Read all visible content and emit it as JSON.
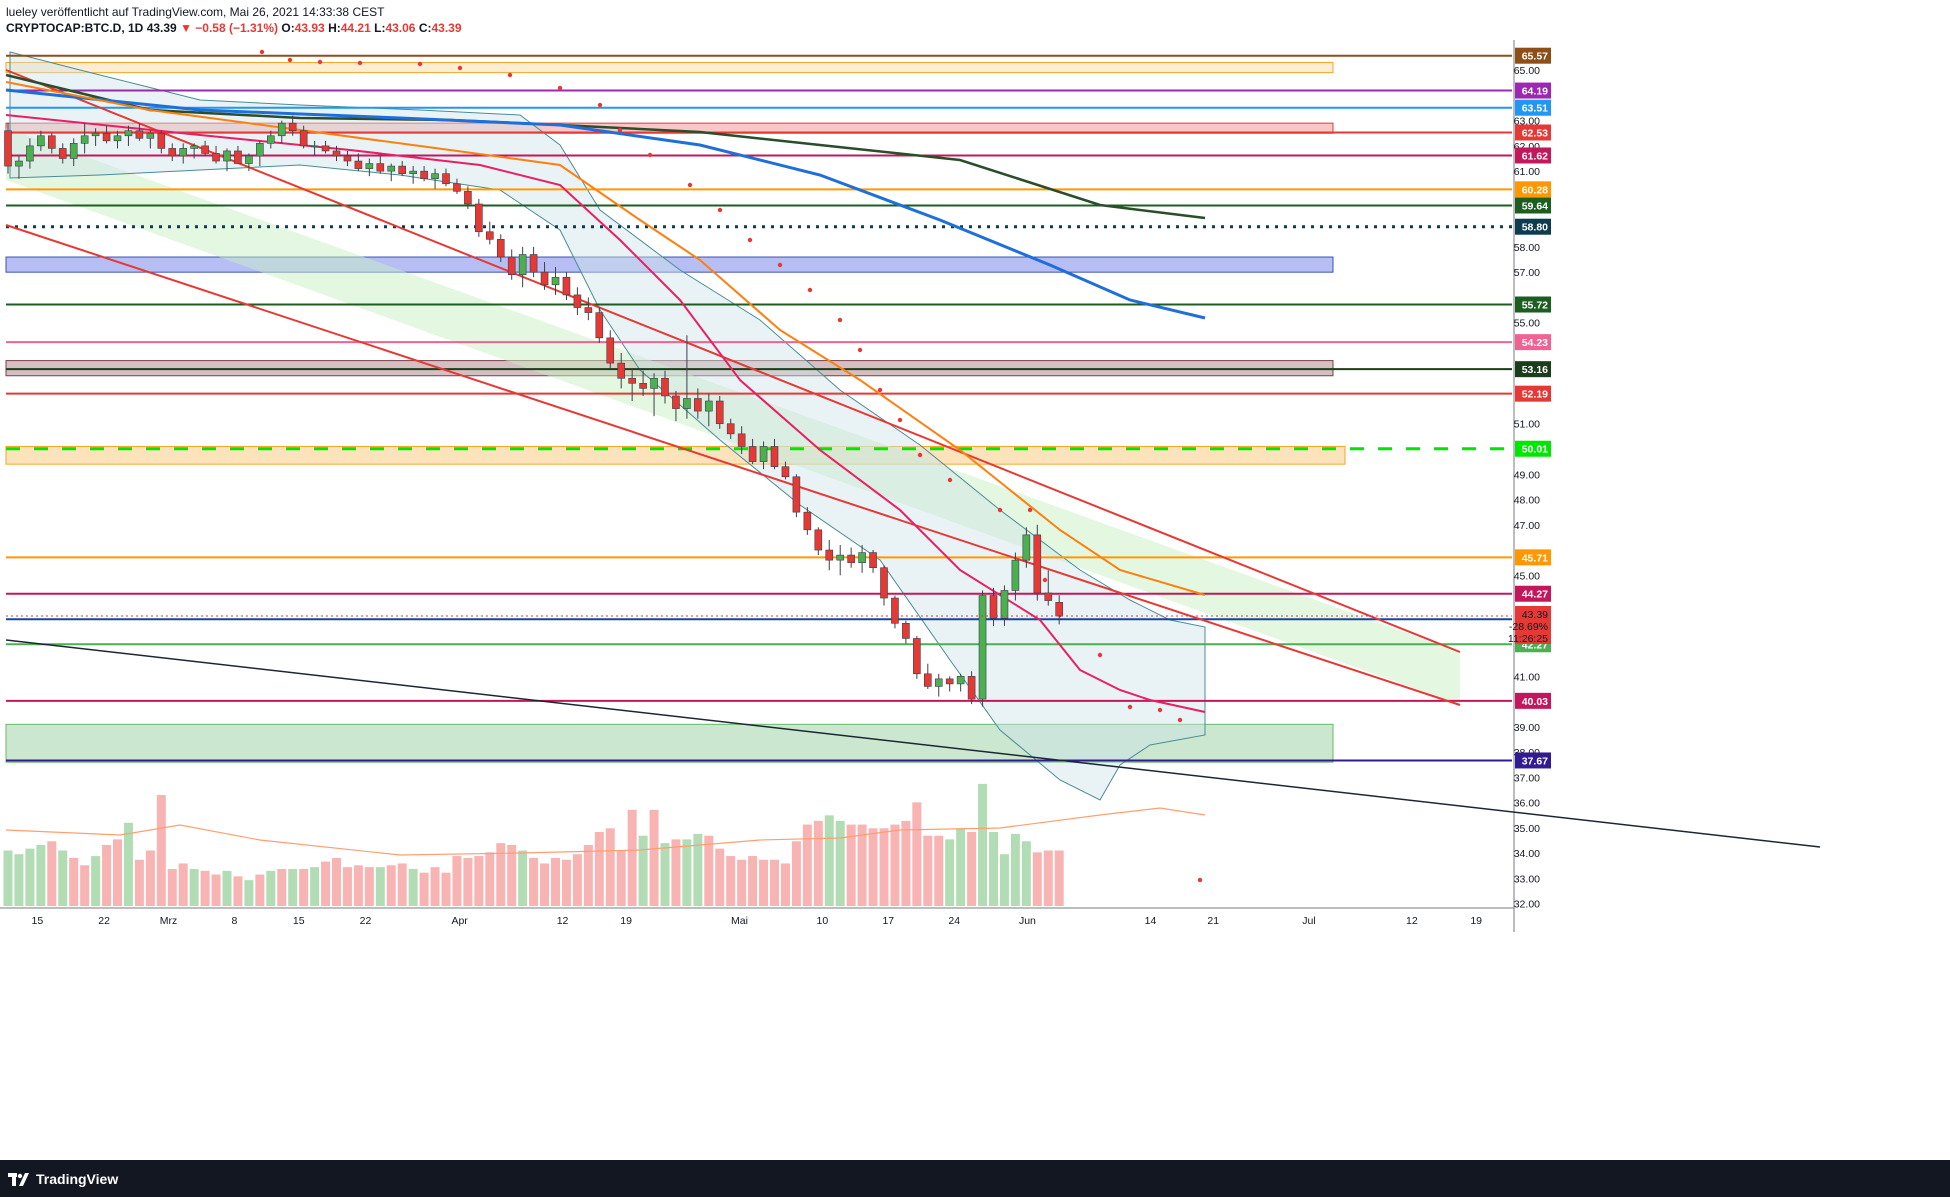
{
  "header": {
    "publisher_line": "lueley veröffentlicht auf TradingView.com, Mai 26, 2021 14:33:38 CEST",
    "symbol": "CRYPTOCAP:BTC.D, 1D",
    "last": "43.39",
    "change": "−0.58 (−1.31%)",
    "open_label": "O:",
    "open": "43.93",
    "high_label": "H:",
    "high": "44.21",
    "low_label": "L:",
    "low": "43.06",
    "close_label": "C:",
    "close": "43.39"
  },
  "footer": {
    "brand": "TradingView"
  },
  "colors": {
    "up": "#26a69a",
    "down": "#ef5350",
    "up_candle": "#4caf50",
    "down_candle": "#e53935",
    "accent_orange": "#ff9800",
    "green_dash": "#00e600"
  },
  "chart_data": {
    "type": "candlestick",
    "y_axis_ticks": [
      32,
      33,
      34,
      35,
      36,
      37,
      38,
      39,
      41,
      45,
      47,
      48,
      49,
      51,
      55,
      57,
      58,
      61,
      62,
      63,
      65
    ],
    "x_axis_ticks": [
      "15",
      "22",
      "Mrz",
      "8",
      "15",
      "22",
      "Apr",
      "12",
      "19",
      "Mai",
      "10",
      "17",
      "24",
      "Jun",
      "14",
      "21",
      "Jul",
      "12",
      "19"
    ],
    "price_tags": [
      {
        "label": "65.57",
        "value": 65.57,
        "color": "#8d4e18"
      },
      {
        "label": "64.19",
        "value": 64.19,
        "color": "#9c27b0"
      },
      {
        "label": "63.51",
        "value": 63.51,
        "color": "#2196f3"
      },
      {
        "label": "62.53",
        "value": 62.53,
        "color": "#e53935"
      },
      {
        "label": "61.62",
        "value": 61.62,
        "color": "#c2185b"
      },
      {
        "label": "60.28",
        "value": 60.28,
        "color": "#ff9800"
      },
      {
        "label": "59.64",
        "value": 59.64,
        "color": "#1b5e20"
      },
      {
        "label": "58.80",
        "value": 58.8,
        "color": "#0d3b4f"
      },
      {
        "label": "55.72",
        "value": 55.72,
        "color": "#1b5e20"
      },
      {
        "label": "54.23",
        "value": 54.23,
        "color": "#f06292"
      },
      {
        "label": "53.16",
        "value": 53.16,
        "color": "#1b3d1b"
      },
      {
        "label": "52.19",
        "value": 52.19,
        "color": "#e53935"
      },
      {
        "label": "50.01",
        "value": 50.01,
        "color": "#00e600"
      },
      {
        "label": "45.71",
        "value": 45.71,
        "color": "#ff9800"
      },
      {
        "label": "44.27",
        "value": 44.27,
        "color": "#c2185b"
      },
      {
        "label": "43.26",
        "value": 43.26,
        "color": "#0d47a1"
      },
      {
        "label": "42.27",
        "value": 42.27,
        "color": "#4caf50"
      },
      {
        "label": "40.03",
        "value": 40.03,
        "color": "#c2185b"
      },
      {
        "label": "37.67",
        "value": 37.67,
        "color": "#311b92"
      }
    ],
    "current_tag": {
      "price": "43.39",
      "pct": "-28.69%",
      "countdown": "11:26:25",
      "value": 43.39
    },
    "horizontal_lines": [
      {
        "value": 65.57,
        "color": "#8d4e18",
        "style": "solid"
      },
      {
        "value": 64.19,
        "color": "#9c27b0",
        "style": "solid"
      },
      {
        "value": 63.51,
        "color": "#2196f3",
        "style": "solid"
      },
      {
        "value": 62.53,
        "color": "#e53935",
        "style": "solid"
      },
      {
        "value": 61.62,
        "color": "#c2185b",
        "style": "solid"
      },
      {
        "value": 60.28,
        "color": "#ff9800",
        "style": "solid"
      },
      {
        "value": 59.64,
        "color": "#1b5e20",
        "style": "solid"
      },
      {
        "value": 58.8,
        "color": "#0d3b4f",
        "style": "dotted"
      },
      {
        "value": 55.72,
        "color": "#1b5e20",
        "style": "solid"
      },
      {
        "value": 54.23,
        "color": "#f06292",
        "style": "solid"
      },
      {
        "value": 53.16,
        "color": "#1b3d1b",
        "style": "solid"
      },
      {
        "value": 52.19,
        "color": "#e53935",
        "style": "solid"
      },
      {
        "value": 50.01,
        "color": "#00e600",
        "style": "dashed"
      },
      {
        "value": 45.71,
        "color": "#ff9800",
        "style": "solid"
      },
      {
        "value": 44.27,
        "color": "#c2185b",
        "style": "solid"
      },
      {
        "value": 43.26,
        "color": "#0d47a1",
        "style": "solid"
      },
      {
        "value": 42.27,
        "color": "#4caf50",
        "style": "solid"
      },
      {
        "value": 40.03,
        "color": "#c2185b",
        "style": "solid"
      },
      {
        "value": 37.67,
        "color": "#311b92",
        "style": "solid"
      }
    ],
    "zones": [
      {
        "from": 64.9,
        "to": 65.3,
        "color": "#fde7c7",
        "border": "#f5a623"
      },
      {
        "from": 62.5,
        "to": 62.9,
        "color": "#f8b4b4",
        "border": "#e53935"
      },
      {
        "from": 57.0,
        "to": 57.6,
        "color": "#9fa8f0",
        "border": "#3f51b5"
      },
      {
        "from": 52.9,
        "to": 53.5,
        "color": "#c8a9ad",
        "border": "#7b3f47"
      },
      {
        "from": 49.4,
        "to": 50.1,
        "color": "#fbd9a5",
        "border": "#f5a623"
      },
      {
        "from": 37.6,
        "to": 39.1,
        "color": "#b9dfbf",
        "border": "#66bb6a"
      }
    ],
    "candles": [
      [
        62.6,
        62.9,
        60.9,
        61.2
      ],
      [
        61.2,
        61.6,
        60.7,
        61.4
      ],
      [
        61.4,
        62.3,
        61.1,
        62.0
      ],
      [
        62.0,
        62.6,
        61.8,
        62.4
      ],
      [
        62.4,
        62.5,
        61.7,
        61.9
      ],
      [
        61.9,
        62.1,
        61.3,
        61.5
      ],
      [
        61.5,
        62.3,
        61.2,
        62.1
      ],
      [
        62.1,
        62.9,
        61.7,
        62.4
      ],
      [
        62.4,
        62.7,
        62.0,
        62.5
      ],
      [
        62.5,
        62.8,
        62.1,
        62.2
      ],
      [
        62.2,
        62.6,
        61.9,
        62.4
      ],
      [
        62.4,
        62.8,
        62.0,
        62.6
      ],
      [
        62.6,
        62.9,
        62.2,
        62.3
      ],
      [
        62.3,
        62.6,
        61.9,
        62.5
      ],
      [
        62.5,
        62.6,
        61.7,
        61.9
      ],
      [
        61.9,
        62.1,
        61.4,
        61.6
      ],
      [
        61.6,
        62.1,
        61.3,
        61.9
      ],
      [
        61.9,
        62.1,
        61.5,
        62.0
      ],
      [
        62.0,
        62.2,
        61.6,
        61.7
      ],
      [
        61.7,
        62.0,
        61.3,
        61.4
      ],
      [
        61.4,
        61.9,
        61.0,
        61.8
      ],
      [
        61.8,
        62.0,
        61.3,
        61.3
      ],
      [
        61.3,
        61.7,
        61.0,
        61.6
      ],
      [
        61.6,
        62.2,
        61.2,
        62.1
      ],
      [
        62.1,
        62.6,
        61.9,
        62.4
      ],
      [
        62.4,
        63.0,
        62.1,
        62.9
      ],
      [
        62.9,
        63.2,
        62.4,
        62.6
      ],
      [
        62.6,
        62.8,
        61.9,
        62.0
      ],
      [
        62.0,
        62.2,
        61.6,
        62.0
      ],
      [
        62.0,
        62.2,
        61.7,
        61.8
      ],
      [
        61.8,
        62.0,
        61.4,
        61.6
      ],
      [
        61.6,
        61.8,
        61.2,
        61.4
      ],
      [
        61.4,
        61.7,
        61.0,
        61.1
      ],
      [
        61.1,
        61.5,
        60.8,
        61.3
      ],
      [
        61.3,
        61.6,
        60.9,
        61.0
      ],
      [
        61.0,
        61.3,
        60.6,
        61.2
      ],
      [
        61.2,
        61.4,
        60.8,
        60.9
      ],
      [
        60.9,
        61.2,
        60.5,
        61.0
      ],
      [
        61.0,
        61.2,
        60.6,
        60.7
      ],
      [
        60.7,
        61.1,
        60.3,
        60.9
      ],
      [
        60.9,
        61.1,
        60.4,
        60.5
      ],
      [
        60.5,
        60.7,
        60.1,
        60.2
      ],
      [
        60.2,
        60.4,
        59.5,
        59.7
      ],
      [
        59.7,
        59.9,
        58.4,
        58.6
      ],
      [
        58.6,
        59.0,
        58.1,
        58.3
      ],
      [
        58.3,
        58.5,
        57.4,
        57.6
      ],
      [
        57.6,
        57.9,
        56.7,
        56.9
      ],
      [
        56.9,
        58.0,
        56.4,
        57.7
      ],
      [
        57.7,
        58.0,
        56.8,
        57.0
      ],
      [
        57.0,
        57.4,
        56.3,
        56.5
      ],
      [
        56.5,
        57.2,
        56.1,
        56.8
      ],
      [
        56.8,
        57.0,
        55.9,
        56.1
      ],
      [
        56.1,
        56.4,
        55.3,
        55.6
      ],
      [
        55.6,
        56.0,
        55.1,
        55.4
      ],
      [
        55.4,
        55.6,
        54.2,
        54.4
      ],
      [
        54.4,
        54.7,
        53.2,
        53.4
      ],
      [
        53.4,
        53.8,
        52.4,
        52.8
      ],
      [
        52.8,
        53.2,
        51.9,
        52.6
      ],
      [
        52.6,
        53.1,
        52.1,
        52.4
      ],
      [
        52.4,
        53.0,
        51.3,
        52.8
      ],
      [
        52.8,
        53.1,
        51.8,
        52.1
      ],
      [
        52.1,
        52.3,
        51.1,
        51.6
      ],
      [
        51.6,
        54.5,
        51.2,
        52.0
      ],
      [
        52.0,
        52.4,
        51.2,
        51.5
      ],
      [
        51.5,
        52.2,
        50.9,
        51.9
      ],
      [
        51.9,
        52.1,
        50.8,
        51.0
      ],
      [
        51.0,
        51.2,
        50.4,
        50.6
      ],
      [
        50.6,
        50.9,
        49.8,
        50.1
      ],
      [
        50.1,
        50.4,
        49.4,
        49.5
      ],
      [
        49.5,
        50.3,
        49.2,
        50.1
      ],
      [
        50.1,
        50.4,
        49.2,
        49.3
      ],
      [
        49.3,
        49.5,
        48.8,
        48.9
      ],
      [
        48.9,
        49.0,
        47.3,
        47.5
      ],
      [
        47.5,
        47.7,
        46.6,
        46.8
      ],
      [
        46.8,
        46.9,
        45.8,
        46.0
      ],
      [
        46.0,
        46.4,
        45.2,
        45.6
      ],
      [
        45.6,
        46.2,
        45.0,
        45.8
      ],
      [
        45.8,
        46.1,
        45.3,
        45.5
      ],
      [
        45.5,
        46.2,
        45.1,
        45.9
      ],
      [
        45.9,
        46.0,
        45.1,
        45.3
      ],
      [
        45.3,
        45.4,
        43.8,
        44.1
      ],
      [
        44.1,
        44.2,
        42.9,
        43.1
      ],
      [
        43.1,
        43.2,
        42.3,
        42.5
      ],
      [
        42.5,
        42.6,
        40.9,
        41.1
      ],
      [
        41.1,
        41.5,
        40.5,
        40.6
      ],
      [
        40.6,
        41.1,
        40.2,
        40.9
      ],
      [
        40.9,
        41.0,
        40.4,
        40.7
      ],
      [
        40.7,
        41.1,
        40.4,
        41.0
      ],
      [
        41.0,
        41.2,
        39.9,
        40.1
      ],
      [
        40.1,
        44.4,
        39.8,
        44.2
      ],
      [
        44.2,
        44.5,
        43.0,
        43.3
      ],
      [
        43.3,
        44.6,
        43.0,
        44.4
      ],
      [
        44.4,
        45.9,
        44.0,
        45.6
      ],
      [
        45.6,
        46.9,
        45.3,
        46.6
      ],
      [
        46.6,
        47.0,
        44.0,
        44.3
      ],
      [
        44.3,
        45.2,
        43.8,
        44.0
      ],
      [
        43.93,
        44.21,
        43.06,
        43.39
      ]
    ],
    "volume": [
      [
        0.3,
        1
      ],
      [
        0.28,
        1
      ],
      [
        0.31,
        1
      ],
      [
        0.33,
        1
      ],
      [
        0.35,
        0
      ],
      [
        0.3,
        1
      ],
      [
        0.26,
        0
      ],
      [
        0.22,
        0
      ],
      [
        0.27,
        1
      ],
      [
        0.33,
        0
      ],
      [
        0.36,
        0
      ],
      [
        0.45,
        1
      ],
      [
        0.25,
        0
      ],
      [
        0.3,
        0
      ],
      [
        0.6,
        0
      ],
      [
        0.2,
        0
      ],
      [
        0.23,
        0
      ],
      [
        0.2,
        1
      ],
      [
        0.19,
        0
      ],
      [
        0.17,
        0
      ],
      [
        0.19,
        1
      ],
      [
        0.16,
        0
      ],
      [
        0.14,
        1
      ],
      [
        0.17,
        0
      ],
      [
        0.19,
        1
      ],
      [
        0.2,
        0
      ],
      [
        0.2,
        1
      ],
      [
        0.2,
        0
      ],
      [
        0.21,
        1
      ],
      [
        0.24,
        0
      ],
      [
        0.26,
        0
      ],
      [
        0.21,
        0
      ],
      [
        0.22,
        0
      ],
      [
        0.21,
        0
      ],
      [
        0.21,
        1
      ],
      [
        0.22,
        0
      ],
      [
        0.23,
        0
      ],
      [
        0.2,
        1
      ],
      [
        0.18,
        0
      ],
      [
        0.21,
        0
      ],
      [
        0.18,
        0
      ],
      [
        0.27,
        0
      ],
      [
        0.26,
        0
      ],
      [
        0.27,
        0
      ],
      [
        0.29,
        0
      ],
      [
        0.34,
        0
      ],
      [
        0.33,
        0
      ],
      [
        0.3,
        1
      ],
      [
        0.26,
        0
      ],
      [
        0.23,
        0
      ],
      [
        0.26,
        0
      ],
      [
        0.25,
        0
      ],
      [
        0.28,
        0
      ],
      [
        0.33,
        0
      ],
      [
        0.4,
        0
      ],
      [
        0.42,
        0
      ],
      [
        0.3,
        0
      ],
      [
        0.52,
        0
      ],
      [
        0.38,
        1
      ],
      [
        0.52,
        0
      ],
      [
        0.34,
        1
      ],
      [
        0.36,
        0
      ],
      [
        0.36,
        1
      ],
      [
        0.39,
        1
      ],
      [
        0.38,
        0
      ],
      [
        0.31,
        0
      ],
      [
        0.27,
        0
      ],
      [
        0.25,
        0
      ],
      [
        0.27,
        0
      ],
      [
        0.25,
        0
      ],
      [
        0.25,
        0
      ],
      [
        0.23,
        0
      ],
      [
        0.35,
        0
      ],
      [
        0.44,
        0
      ],
      [
        0.46,
        0
      ],
      [
        0.49,
        1
      ],
      [
        0.46,
        1
      ],
      [
        0.44,
        0
      ],
      [
        0.44,
        0
      ],
      [
        0.42,
        0
      ],
      [
        0.42,
        0
      ],
      [
        0.44,
        0
      ],
      [
        0.46,
        0
      ],
      [
        0.56,
        0
      ],
      [
        0.38,
        0
      ],
      [
        0.38,
        0
      ],
      [
        0.36,
        1
      ],
      [
        0.42,
        1
      ],
      [
        0.4,
        0
      ],
      [
        0.66,
        1
      ],
      [
        0.4,
        1
      ],
      [
        0.28,
        1
      ],
      [
        0.39,
        1
      ],
      [
        0.35,
        1
      ],
      [
        0.29,
        0
      ],
      [
        0.3,
        0
      ],
      [
        0.3,
        0
      ]
    ]
  }
}
